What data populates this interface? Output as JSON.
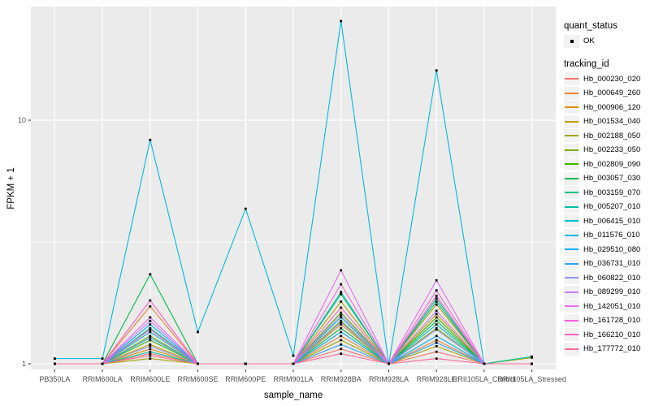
{
  "figure": {
    "x_axis_title": "sample_name",
    "y_axis_title": "FPKM + 1"
  },
  "legend": {
    "quant_status_title": "quant_status",
    "quant_status_items": [
      {
        "label": "OK"
      }
    ],
    "tracking_id_title": "tracking_id"
  },
  "chart_data": {
    "type": "line",
    "title": "",
    "xlabel": "sample_name",
    "ylabel": "FPKM + 1",
    "x_type": "categorical",
    "y_scale": "log10",
    "ylim": [
      0.95,
      30
    ],
    "grid": true,
    "legend_position": "right",
    "panel_bg": "#EBEBEB",
    "grid_color": "#FFFFFF",
    "point_color": "#000000",
    "tick_label_color": "#4D4D4D",
    "categories": [
      "PB350LA",
      "RRIM600LA",
      "RRIM600LE",
      "RRIM600SE",
      "RRIM600PE",
      "RRIM901LA",
      "RRIM928BA",
      "RRIM928LA",
      "RRIM928LE",
      "RRII105LA_Control",
      "RRII105LA_Stressed"
    ],
    "y_ticks": [
      {
        "value": 1,
        "label": "1"
      },
      {
        "value": 10,
        "label": "10"
      }
    ],
    "y_minor": [
      3.1623
    ],
    "series": [
      {
        "name": "Hb_000230_020",
        "color": "#F8766D",
        "values": [
          1.0,
          1.0,
          1.1,
          1.0,
          1.0,
          1.0,
          1.15,
          1.0,
          1.12,
          1.0,
          1.0
        ]
      },
      {
        "name": "Hb_000649_260",
        "color": "#EA8331",
        "values": [
          1.0,
          1.0,
          1.72,
          1.0,
          1.0,
          1.0,
          1.3,
          1.0,
          1.25,
          1.0,
          1.0
        ]
      },
      {
        "name": "Hb_000906_120",
        "color": "#D89000",
        "values": [
          1.0,
          1.0,
          1.15,
          1.0,
          1.0,
          1.0,
          1.45,
          1.0,
          1.6,
          1.0,
          1.0
        ]
      },
      {
        "name": "Hb_001534_040",
        "color": "#C09B00",
        "values": [
          1.0,
          1.0,
          1.2,
          1.0,
          1.0,
          1.0,
          1.8,
          1.0,
          1.75,
          1.0,
          1.0
        ]
      },
      {
        "name": "Hb_002188_050",
        "color": "#A3A500",
        "values": [
          1.0,
          1.0,
          1.05,
          1.0,
          1.0,
          1.0,
          1.25,
          1.0,
          1.18,
          1.0,
          1.06
        ]
      },
      {
        "name": "Hb_002233_050",
        "color": "#7CAE00",
        "values": [
          1.0,
          1.0,
          1.3,
          1.0,
          1.0,
          1.0,
          1.5,
          1.0,
          1.4,
          1.0,
          1.0
        ]
      },
      {
        "name": "Hb_002809_090",
        "color": "#39B600",
        "values": [
          1.0,
          1.0,
          1.25,
          1.0,
          1.0,
          1.0,
          1.62,
          1.0,
          1.55,
          1.0,
          1.0
        ]
      },
      {
        "name": "Hb_003057_030",
        "color": "#00BB4E",
        "values": [
          1.0,
          1.0,
          2.33,
          1.0,
          1.0,
          1.0,
          1.4,
          1.0,
          1.5,
          1.0,
          1.0
        ]
      },
      {
        "name": "Hb_003159_070",
        "color": "#00BF7D",
        "values": [
          1.0,
          1.0,
          1.4,
          1.0,
          1.0,
          1.0,
          1.93,
          1.0,
          1.8,
          1.0,
          1.0
        ]
      },
      {
        "name": "Hb_005207_010",
        "color": "#00C1A3",
        "values": [
          1.0,
          1.0,
          1.12,
          1.0,
          1.0,
          1.0,
          1.97,
          1.0,
          1.85,
          1.0,
          1.07
        ]
      },
      {
        "name": "Hb_006415_010",
        "color": "#00BFC4",
        "values": [
          1.0,
          1.0,
          1.35,
          1.0,
          1.0,
          1.0,
          1.55,
          1.0,
          1.45,
          1.0,
          1.0
        ]
      },
      {
        "name": "Hb_011576_010",
        "color": "#00BAE0",
        "values": [
          1.05,
          1.05,
          8.3,
          1.35,
          4.33,
          1.08,
          25.5,
          1.0,
          16.0,
          1.0,
          1.0
        ]
      },
      {
        "name": "Hb_029510_080",
        "color": "#00B0F6",
        "values": [
          1.0,
          1.0,
          1.45,
          1.0,
          1.0,
          1.0,
          1.35,
          1.0,
          1.3,
          1.0,
          1.0
        ]
      },
      {
        "name": "Hb_036731_010",
        "color": "#35A2FF",
        "values": [
          1.0,
          1.0,
          1.28,
          1.0,
          1.0,
          1.0,
          1.2,
          1.0,
          1.22,
          1.0,
          1.0
        ]
      },
      {
        "name": "Hb_060822_010",
        "color": "#9590FF",
        "values": [
          1.0,
          1.0,
          1.18,
          1.0,
          1.0,
          1.0,
          1.48,
          1.0,
          1.38,
          1.0,
          1.0
        ]
      },
      {
        "name": "Hb_089299_010",
        "color": "#C77CFF",
        "values": [
          1.0,
          1.0,
          1.5,
          1.0,
          1.0,
          1.0,
          1.58,
          1.0,
          1.65,
          1.0,
          1.0
        ]
      },
      {
        "name": "Hb_142051_010",
        "color": "#E76BF3",
        "values": [
          1.0,
          1.0,
          1.55,
          1.0,
          1.0,
          1.0,
          2.42,
          1.0,
          2.2,
          1.0,
          1.0
        ]
      },
      {
        "name": "Hb_161728_010",
        "color": "#FA62DB",
        "values": [
          1.0,
          1.0,
          1.38,
          1.0,
          1.0,
          1.0,
          2.12,
          1.0,
          2.0,
          1.0,
          1.0
        ]
      },
      {
        "name": "Hb_166210_010",
        "color": "#FF62BC",
        "values": [
          1.0,
          1.0,
          1.82,
          1.0,
          1.0,
          1.0,
          1.7,
          1.0,
          1.9,
          1.0,
          1.0
        ]
      },
      {
        "name": "Hb_177772_010",
        "color": "#FF6A98",
        "values": [
          1.0,
          1.0,
          1.08,
          1.0,
          1.0,
          1.0,
          1.1,
          1.0,
          1.05,
          1.0,
          1.0
        ]
      }
    ]
  }
}
